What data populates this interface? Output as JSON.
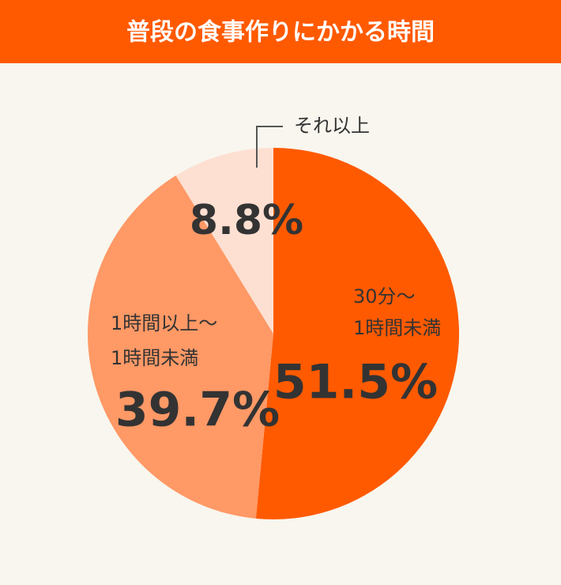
{
  "chart_data": {
    "type": "pie",
    "title": "普段の食事作りにかかる時間",
    "categories": [
      [
        "30分～",
        "1時間未満"
      ],
      [
        "1時間以上～",
        "1時間未満"
      ],
      [
        "それ以上"
      ]
    ],
    "values": [
      51.5,
      39.7,
      8.8
    ],
    "value_labels": [
      "51.5%",
      "39.7%",
      "8.8%"
    ],
    "colors": [
      "#ff5a00",
      "#ff9966",
      "#fde0d2"
    ]
  }
}
